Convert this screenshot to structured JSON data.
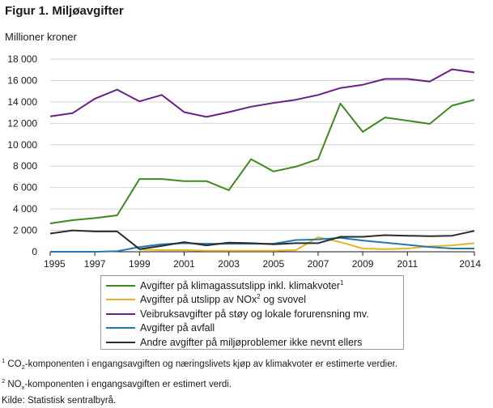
{
  "figure": {
    "title": "Figur 1. Miljøavgifter",
    "unit_label": "Millioner  kroner"
  },
  "chart_data": {
    "type": "line",
    "title": "Figur 1. Miljøavgifter",
    "ylabel": "Millioner  kroner",
    "xlabel": "",
    "x": [
      1995,
      1996,
      1997,
      1998,
      1999,
      2000,
      2001,
      2002,
      2003,
      2004,
      2005,
      2006,
      2007,
      2008,
      2009,
      2010,
      2011,
      2012,
      2013,
      2014
    ],
    "xlim": [
      1995,
      2014
    ],
    "ylim": [
      0,
      18000
    ],
    "x_tick_values": [
      1995,
      1997,
      1999,
      2001,
      2003,
      2005,
      2007,
      2009,
      2011,
      2014
    ],
    "x_tick_labels": [
      "1995",
      "1997",
      "1999",
      "2001",
      "2003",
      "2005",
      "2007",
      "2009",
      "2011",
      "2014"
    ],
    "y_tick_values": [
      0,
      2000,
      4000,
      6000,
      8000,
      10000,
      12000,
      14000,
      16000,
      18000
    ],
    "y_tick_labels": [
      "0",
      "2 000",
      "4 000",
      "6 000",
      "8 000",
      "10 000",
      "12 000",
      "14 000",
      "16 000",
      "18 000"
    ],
    "grid": "horizontal",
    "legend_position": "bottom",
    "series": [
      {
        "key": "klima",
        "name": "Avgifter på klimagassutslipp  inkl. klimakvoter",
        "footnote": "1",
        "color": "#3d8a1e",
        "values": [
          2650,
          2950,
          3150,
          3400,
          6800,
          6800,
          6600,
          6600,
          5750,
          8650,
          7500,
          7950,
          8650,
          13850,
          11200,
          12550,
          12250,
          11950,
          13650,
          14200
        ]
      },
      {
        "key": "nox",
        "name_before": "Avgifter på utslipp  av NOx",
        "name_sup": "2",
        "name_after": " og svovel",
        "color": "#e8b32a",
        "values": [
          null,
          null,
          null,
          null,
          200,
          150,
          150,
          100,
          100,
          100,
          100,
          150,
          1350,
          900,
          300,
          250,
          300,
          500,
          600,
          800
        ]
      },
      {
        "key": "veibruk",
        "name": "Veibruksavgifter på støy og lokale forurensning mv.",
        "color": "#6a1e86",
        "values": [
          12650,
          12950,
          14300,
          15150,
          14050,
          14650,
          13050,
          12600,
          13050,
          13550,
          13900,
          14200,
          14650,
          15300,
          15600,
          16150,
          16150,
          15900,
          17050,
          16750
        ]
      },
      {
        "key": "avfall",
        "name": "Avgifter på avfall",
        "color": "#1f78b4",
        "values": [
          0,
          0,
          0,
          50,
          450,
          700,
          800,
          750,
          750,
          750,
          750,
          1100,
          1150,
          1300,
          1050,
          850,
          650,
          450,
          300,
          300
        ]
      },
      {
        "key": "andre",
        "name": "Andre avgifter på miljøproblemer ikke nevnt ellers",
        "color": "#2b2b2b",
        "values": [
          1700,
          2000,
          1900,
          1900,
          250,
          550,
          900,
          600,
          850,
          800,
          700,
          800,
          800,
          1400,
          1400,
          1550,
          1500,
          1450,
          1500,
          1950
        ]
      }
    ]
  },
  "footnotes": {
    "n1_mark": "1",
    "n1_a": " CO",
    "n1_sub": "2",
    "n1_b": "-komponenten  i engangsavgiften og næringslivets kjøp av klimakvoter er estimerte verdier.",
    "n2_mark": "2",
    "n2_a": " NO",
    "n2_sub": "x",
    "n2_b": "-komponenten  i engangsavgiften er estimert verdi.",
    "source": "Kilde: Statistisk sentralbyrå."
  }
}
